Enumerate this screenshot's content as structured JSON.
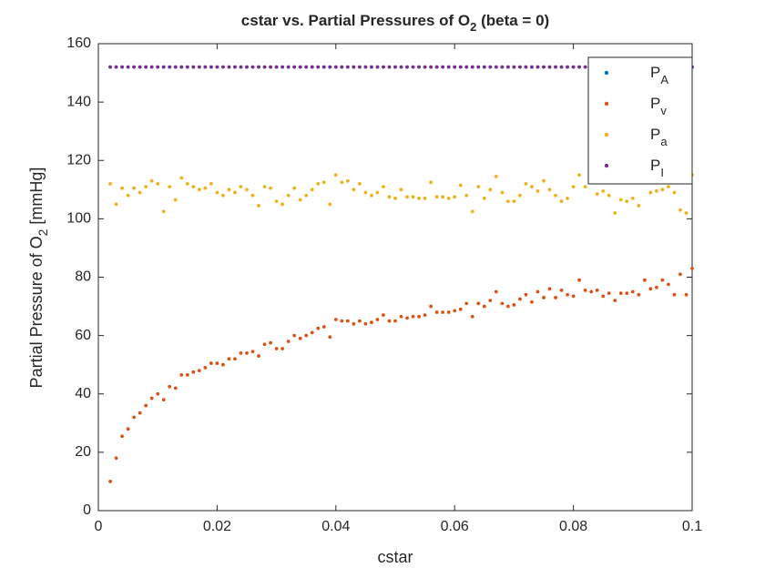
{
  "chart_data": {
    "type": "scatter",
    "title": [
      "cstar vs. Partial Pressures of O",
      "2",
      " (beta = 0)"
    ],
    "xlabel": "cstar",
    "ylabel": [
      "Partial Pressure of O",
      "2",
      " [mmHg]"
    ],
    "xlim": [
      0,
      0.1
    ],
    "xticks": [
      0,
      0.02,
      0.04,
      0.06,
      0.08,
      0.1
    ],
    "ylim": [
      0,
      160
    ],
    "yticks": [
      0,
      20,
      40,
      60,
      80,
      100,
      120,
      140,
      160
    ],
    "grid": false,
    "legend": "upper right",
    "x": [
      0.002,
      0.003,
      0.004,
      0.005,
      0.006,
      0.007,
      0.008,
      0.009,
      0.01,
      0.011,
      0.012,
      0.013,
      0.014,
      0.015,
      0.016,
      0.017,
      0.018,
      0.019,
      0.02,
      0.021,
      0.022,
      0.023,
      0.024,
      0.025,
      0.026,
      0.027,
      0.028,
      0.029,
      0.03,
      0.031,
      0.032,
      0.033,
      0.034,
      0.035,
      0.036,
      0.037,
      0.038,
      0.039,
      0.04,
      0.041,
      0.042,
      0.043,
      0.044,
      0.045,
      0.046,
      0.047,
      0.048,
      0.049,
      0.05,
      0.051,
      0.052,
      0.053,
      0.054,
      0.055,
      0.056,
      0.057,
      0.058,
      0.059,
      0.06,
      0.061,
      0.062,
      0.063,
      0.064,
      0.065,
      0.066,
      0.067,
      0.068,
      0.069,
      0.07,
      0.071,
      0.072,
      0.073,
      0.074,
      0.075,
      0.076,
      0.077,
      0.078,
      0.079,
      0.08,
      0.081,
      0.082,
      0.083,
      0.084,
      0.085,
      0.086,
      0.087,
      0.088,
      0.089,
      0.09,
      0.091,
      0.092,
      0.093,
      0.094,
      0.095,
      0.096,
      0.097,
      0.098,
      0.099,
      0.1
    ],
    "series": [
      {
        "name": [
          "P",
          "A"
        ],
        "color": "#0072BD",
        "values": [
          152,
          152,
          152,
          152,
          152,
          152,
          152,
          152,
          152,
          152,
          152,
          152,
          152,
          152,
          152,
          152,
          152,
          152,
          152,
          152,
          152,
          152,
          152,
          152,
          152,
          152,
          152,
          152,
          152,
          152,
          152,
          152,
          152,
          152,
          152,
          152,
          152,
          152,
          152,
          152,
          152,
          152,
          152,
          152,
          152,
          152,
          152,
          152,
          152,
          152,
          152,
          152,
          152,
          152,
          152,
          152,
          152,
          152,
          152,
          152,
          152,
          152,
          152,
          152,
          152,
          152,
          152,
          152,
          152,
          152,
          152,
          152,
          152,
          152,
          152,
          152,
          152,
          152,
          152,
          152,
          152,
          152,
          152,
          152,
          152,
          152,
          152,
          152,
          152,
          152,
          152,
          152,
          152,
          152,
          152,
          152,
          152,
          152,
          152
        ]
      },
      {
        "name": [
          "P",
          "v"
        ],
        "color": "#D95319",
        "values": [
          10,
          18,
          25.5,
          28,
          32,
          33.5,
          36,
          38.5,
          40,
          38,
          42.5,
          42,
          46.5,
          46.5,
          47.5,
          48,
          49,
          50.5,
          50.5,
          50,
          52,
          52,
          54,
          54,
          54.5,
          53,
          57,
          57.5,
          55.5,
          55.5,
          58,
          60,
          59,
          60,
          61,
          62.5,
          63,
          59.5,
          65.5,
          65,
          65,
          64,
          65,
          64,
          64.5,
          65.5,
          67,
          65,
          65,
          66.5,
          66,
          66.5,
          66.5,
          67,
          70,
          68,
          68,
          68,
          68.5,
          69,
          71,
          66.5,
          71,
          70,
          72,
          75,
          71,
          70,
          70.5,
          72.5,
          74,
          71.5,
          75,
          73,
          76,
          73,
          75.5,
          74,
          73.5,
          79,
          75.5,
          75,
          75.5,
          73.5,
          74.5,
          72,
          74.5,
          74.5,
          75,
          74,
          79,
          76,
          76.5,
          79,
          77.5,
          74,
          81,
          74,
          83
        ]
      },
      {
        "name": [
          "P",
          "a"
        ],
        "color": "#EDB120",
        "values": [
          112,
          105,
          110.5,
          108,
          110.5,
          109,
          111,
          113,
          112,
          102.5,
          111,
          106.5,
          114,
          112,
          111,
          110,
          110.5,
          112,
          109,
          108,
          110,
          109,
          111,
          110,
          108,
          104.5,
          111,
          110.5,
          106,
          105,
          108,
          110.5,
          106.5,
          108,
          110,
          112,
          112.5,
          105,
          115,
          112.5,
          113,
          110,
          112,
          109,
          108,
          109,
          111,
          107.5,
          107,
          110,
          107.5,
          107.5,
          107,
          107,
          112.5,
          107.5,
          107.5,
          107,
          107.5,
          111.5,
          108,
          102.5,
          111,
          107,
          110,
          114.5,
          109,
          106,
          106,
          108,
          112,
          111,
          109.5,
          113,
          110,
          108,
          106,
          107,
          111,
          115,
          111,
          114,
          108.5,
          109.5,
          108,
          102,
          106.5,
          106,
          107,
          104.5,
          112.5,
          109,
          109.5,
          110,
          111,
          109,
          103,
          102,
          115
        ]
      },
      {
        "name": [
          "P",
          "I"
        ],
        "color": "#7E2F8E",
        "values": [
          152,
          152,
          152,
          152,
          152,
          152,
          152,
          152,
          152,
          152,
          152,
          152,
          152,
          152,
          152,
          152,
          152,
          152,
          152,
          152,
          152,
          152,
          152,
          152,
          152,
          152,
          152,
          152,
          152,
          152,
          152,
          152,
          152,
          152,
          152,
          152,
          152,
          152,
          152,
          152,
          152,
          152,
          152,
          152,
          152,
          152,
          152,
          152,
          152,
          152,
          152,
          152,
          152,
          152,
          152,
          152,
          152,
          152,
          152,
          152,
          152,
          152,
          152,
          152,
          152,
          152,
          152,
          152,
          152,
          152,
          152,
          152,
          152,
          152,
          152,
          152,
          152,
          152,
          152,
          152,
          152,
          152,
          152,
          152,
          152,
          152,
          152,
          152,
          152,
          152,
          152,
          152,
          152,
          152,
          152,
          152,
          152,
          152,
          152
        ]
      }
    ]
  }
}
